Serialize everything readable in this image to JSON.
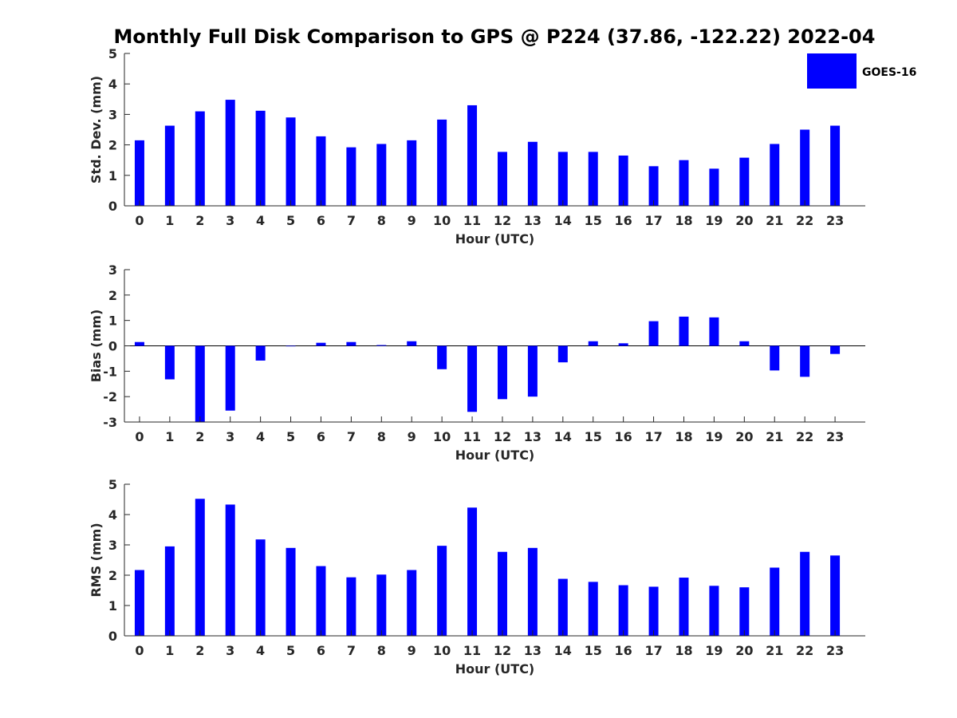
{
  "figure": {
    "title": "Monthly Full Disk Comparison to GPS @ P224 (37.86, -122.22) 2022-04"
  },
  "legend": {
    "label": "GOES-16",
    "color": "#0000ff"
  },
  "chart_data": [
    {
      "type": "bar",
      "name": "std_dev",
      "xlabel": "Hour (UTC)",
      "ylabel": "Std. Dev. (mm)",
      "categories": [
        "0",
        "1",
        "2",
        "3",
        "4",
        "5",
        "6",
        "7",
        "8",
        "9",
        "10",
        "11",
        "12",
        "13",
        "14",
        "15",
        "16",
        "17",
        "18",
        "19",
        "20",
        "21",
        "22",
        "23"
      ],
      "ylim": [
        0,
        5
      ],
      "yticks": [
        0,
        1,
        2,
        3,
        4,
        5
      ],
      "grid": false,
      "series": [
        {
          "name": "GOES-16",
          "color": "#0000ff",
          "values": [
            2.15,
            2.63,
            3.1,
            3.48,
            3.12,
            2.9,
            2.28,
            1.92,
            2.03,
            2.15,
            2.83,
            3.3,
            1.77,
            2.1,
            1.77,
            1.77,
            1.65,
            1.3,
            1.5,
            1.22,
            1.58,
            2.03,
            2.5,
            2.63
          ]
        }
      ],
      "legend": "top-right"
    },
    {
      "type": "bar",
      "name": "bias",
      "xlabel": "Hour (UTC)",
      "ylabel": "Bias (mm)",
      "categories": [
        "0",
        "1",
        "2",
        "3",
        "4",
        "5",
        "6",
        "7",
        "8",
        "9",
        "10",
        "11",
        "12",
        "13",
        "14",
        "15",
        "16",
        "17",
        "18",
        "19",
        "20",
        "21",
        "22",
        "23"
      ],
      "ylim": [
        -3,
        3
      ],
      "yticks": [
        -3,
        -2,
        -1,
        0,
        1,
        2,
        3
      ],
      "grid": false,
      "series": [
        {
          "name": "GOES-16",
          "color": "#0000ff",
          "values": [
            0.15,
            -1.32,
            -3.0,
            -2.55,
            -0.58,
            -0.02,
            0.12,
            0.15,
            0.03,
            0.18,
            -0.92,
            -2.6,
            -2.1,
            -2.0,
            -0.65,
            0.18,
            0.1,
            0.97,
            1.15,
            1.12,
            0.18,
            -0.97,
            -1.22,
            -0.32
          ]
        }
      ]
    },
    {
      "type": "bar",
      "name": "rms",
      "xlabel": "Hour (UTC)",
      "ylabel": "RMS (mm)",
      "categories": [
        "0",
        "1",
        "2",
        "3",
        "4",
        "5",
        "6",
        "7",
        "8",
        "9",
        "10",
        "11",
        "12",
        "13",
        "14",
        "15",
        "16",
        "17",
        "18",
        "19",
        "20",
        "21",
        "22",
        "23"
      ],
      "ylim": [
        0,
        5
      ],
      "yticks": [
        0,
        1,
        2,
        3,
        4,
        5
      ],
      "grid": false,
      "series": [
        {
          "name": "GOES-16",
          "color": "#0000ff",
          "values": [
            2.17,
            2.95,
            4.52,
            4.33,
            3.18,
            2.9,
            2.3,
            1.93,
            2.02,
            2.17,
            2.97,
            4.23,
            2.77,
            2.9,
            1.88,
            1.78,
            1.67,
            1.62,
            1.92,
            1.65,
            1.6,
            2.25,
            2.77,
            2.65
          ]
        }
      ]
    }
  ]
}
